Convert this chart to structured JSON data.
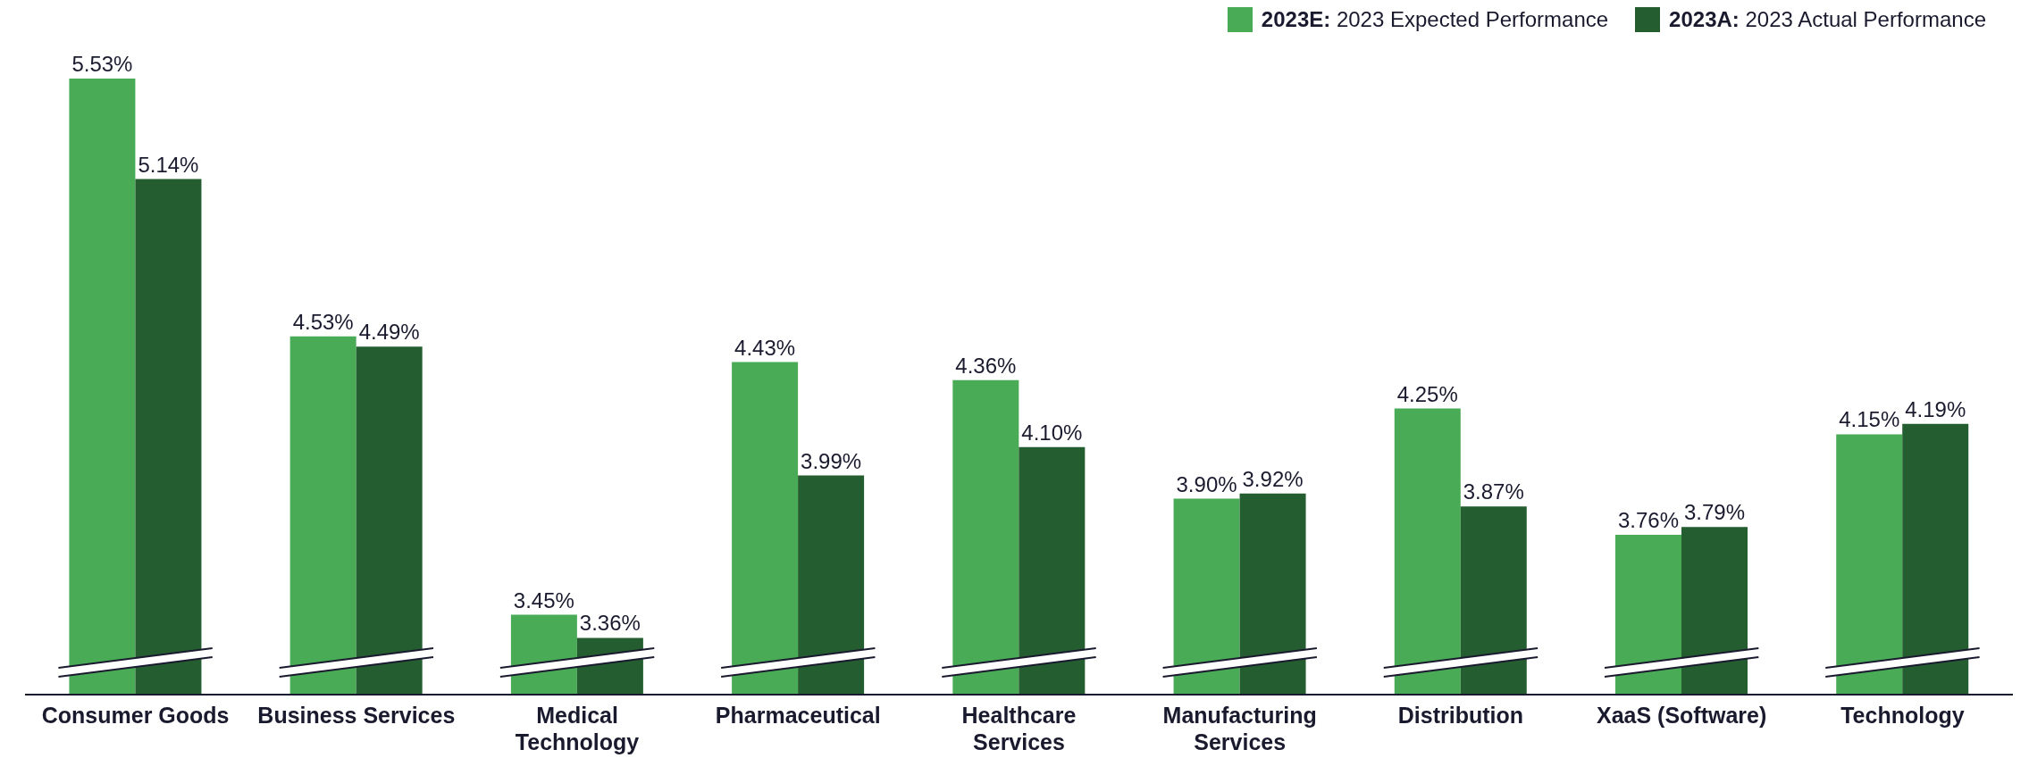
{
  "chart_data": {
    "type": "bar",
    "categories": [
      "Consumer Goods",
      "Business Services",
      "Medical Technology",
      "Pharmaceutical",
      "Healthcare Services",
      "Manufacturing Services",
      "Distribution",
      "XaaS (Software)",
      "Technology"
    ],
    "series": [
      {
        "name": "2023E: 2023 Expected Performance",
        "color": "#4aab57",
        "values": [
          5.53,
          4.53,
          3.45,
          4.43,
          4.36,
          3.9,
          4.25,
          3.76,
          4.15
        ],
        "value_labels": [
          "5.53%",
          "4.53%",
          "3.45%",
          "4.43%",
          "4.36%",
          "3.90%",
          "4.25%",
          "3.76%",
          "4.15%"
        ]
      },
      {
        "name": "2023A: 2023 Actual Performance",
        "color": "#245e30",
        "values": [
          5.14,
          4.49,
          3.36,
          3.99,
          4.1,
          3.92,
          3.87,
          3.79,
          4.19
        ],
        "value_labels": [
          "5.14%",
          "4.49%",
          "3.36%",
          "3.99%",
          "4.10%",
          "3.92%",
          "3.87%",
          "3.79%",
          "4.19%"
        ]
      }
    ],
    "ylim": [
      3.14,
      5.53
    ],
    "legend": "top right"
  }
}
